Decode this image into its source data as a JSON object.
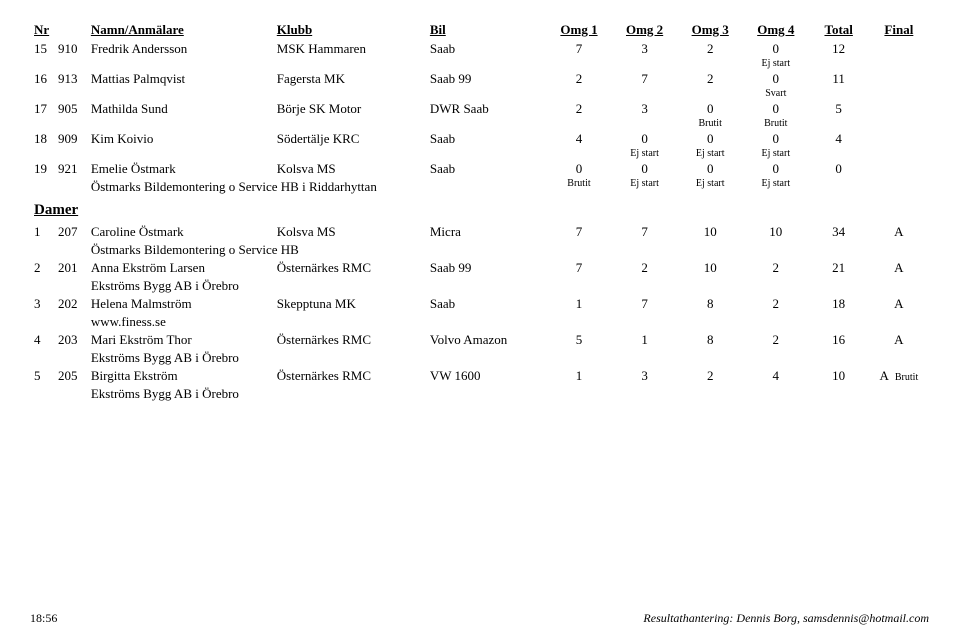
{
  "header": {
    "nr": "Nr",
    "name": "Namn/Anmälare",
    "club": "Klubb",
    "bil": "Bil",
    "omg1": "Omg 1",
    "omg2": "Omg 2",
    "omg3": "Omg 3",
    "omg4": "Omg 4",
    "total": "Total",
    "final": "Final"
  },
  "rows_top": [
    {
      "pos": "15",
      "nr": "910",
      "name": "Fredrik Andersson",
      "club": "MSK Hammaren",
      "bil": "Saab",
      "o1": "7",
      "o2": "3",
      "o3": "2",
      "o4": "0",
      "tot": "12",
      "fin": "",
      "n1": "",
      "n2": "",
      "n3": "",
      "n4": "Ej start"
    },
    {
      "pos": "16",
      "nr": "913",
      "name": "Mattias Palmqvist",
      "club": "Fagersta MK",
      "bil": "Saab 99",
      "o1": "2",
      "o2": "7",
      "o3": "2",
      "o4": "0",
      "tot": "11",
      "fin": "",
      "n1": "",
      "n2": "",
      "n3": "",
      "n4": "Svart"
    },
    {
      "pos": "17",
      "nr": "905",
      "name": "Mathilda Sund",
      "club": "Börje SK Motor",
      "bil": "DWR Saab",
      "o1": "2",
      "o2": "3",
      "o3": "0",
      "o4": "0",
      "tot": "5",
      "fin": "",
      "n1": "",
      "n2": "",
      "n3": "Brutit",
      "n4": "Brutit"
    },
    {
      "pos": "18",
      "nr": "909",
      "name": "Kim Koivio",
      "club": "Södertälje KRC",
      "bil": "Saab",
      "o1": "4",
      "o2": "0",
      "o3": "0",
      "o4": "0",
      "tot": "4",
      "fin": "",
      "n1": "",
      "n2": "Ej start",
      "n3": "Ej start",
      "n4": "Ej start"
    },
    {
      "pos": "19",
      "nr": "921",
      "name": "Emelie Östmark",
      "club": "Kolsva MS",
      "bil": "Saab",
      "o1": "0",
      "o2": "0",
      "o3": "0",
      "o4": "0",
      "tot": "0",
      "fin": "",
      "sub": "Östmarks Bildemontering o Service HB i Riddarhyttan",
      "n1": "Brutit",
      "n2": "Ej start",
      "n3": "Ej start",
      "n4": "Ej start"
    }
  ],
  "section": "Damer",
  "rows_damer": [
    {
      "pos": "1",
      "nr": "207",
      "name": "Caroline Östmark",
      "club": "Kolsva MS",
      "bil": "Micra",
      "o1": "7",
      "o2": "7",
      "o3": "10",
      "o4": "10",
      "tot": "34",
      "fin": "A",
      "sub": "Östmarks Bildemontering o Service HB"
    },
    {
      "pos": "2",
      "nr": "201",
      "name": "Anna Ekström Larsen",
      "club": "Östernärkes RMC",
      "bil": "Saab 99",
      "o1": "7",
      "o2": "2",
      "o3": "10",
      "o4": "2",
      "tot": "21",
      "fin": "A",
      "sub": "Ekströms Bygg AB i Örebro"
    },
    {
      "pos": "3",
      "nr": "202",
      "name": "Helena Malmström",
      "club": "Skepptuna MK",
      "bil": "Saab",
      "o1": "1",
      "o2": "7",
      "o3": "8",
      "o4": "2",
      "tot": "18",
      "fin": "A",
      "sub": "www.finess.se"
    },
    {
      "pos": "4",
      "nr": "203",
      "name": "Mari Ekström Thor",
      "club": "Östernärkes RMC",
      "bil": "Volvo Amazon",
      "o1": "5",
      "o2": "1",
      "o3": "8",
      "o4": "2",
      "tot": "16",
      "fin": "A",
      "sub": "Ekströms Bygg AB i Örebro"
    },
    {
      "pos": "5",
      "nr": "205",
      "name": "Birgitta Ekström",
      "club": "Östernärkes RMC",
      "bil": "VW 1600",
      "o1": "1",
      "o2": "3",
      "o3": "2",
      "o4": "4",
      "tot": "10",
      "fin": "A",
      "sub": "Ekströms Bygg AB i Örebro",
      "extra": "Brutit"
    }
  ],
  "footer": {
    "time": "18:56",
    "credit": "Resultathantering: Dennis Borg, samsdennis@hotmail.com"
  }
}
